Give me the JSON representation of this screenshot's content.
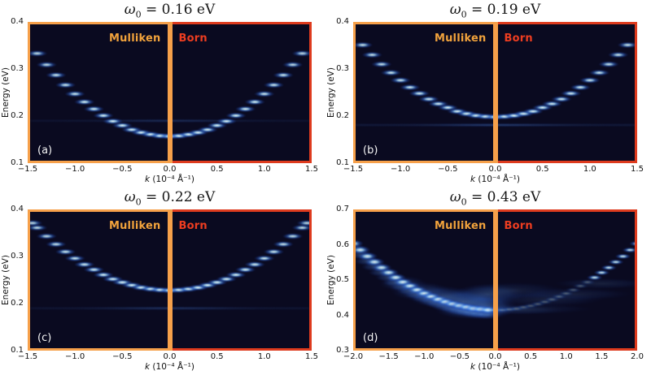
{
  "figure": {
    "background": "#ffffff",
    "colors": {
      "mulliken_orange": "#f6a04a",
      "born_red": "#de3b1e",
      "born_text_red": "#ee3d20",
      "plot_background": "#0a0a20",
      "spot_core": "#ffffff",
      "spot_mid": "#6fb9f2",
      "spot_halo": "#1c3a8c",
      "panel_letter": "#f5f5f5"
    }
  },
  "chart_data": [
    {
      "type": "heatmap",
      "panel_label": "(a)",
      "title": {
        "symbol": "ω",
        "sub": "0",
        "rest": " = 0.16 eV"
      },
      "omega0_eV": 0.16,
      "xlabel_k": "k",
      "xlabel_rest": " (10⁻⁴ Å⁻¹)",
      "ylabel": "Energy (eV)",
      "xlim": [
        -1.5,
        1.5
      ],
      "ylim": [
        0.1,
        0.4
      ],
      "xtick_labels": [
        "−1.5",
        "−1.0",
        "−0.5",
        "0.0",
        "0.5",
        "1.0",
        "1.5"
      ],
      "ytick_labels": [
        "0.1",
        "0.2",
        "0.3",
        "0.4"
      ],
      "regions": {
        "left": "Mulliken",
        "right": "Born"
      },
      "band_min_eV": 0.157,
      "phonon_sideband_eV": 0.19,
      "sideband_alpha": 0.2,
      "side_intensity": {
        "mulliken": 1.0,
        "born": 1.0
      },
      "diffuse": false,
      "spots": [
        [
          -1.4,
          0.333
        ],
        [
          -1.3,
          0.309
        ],
        [
          -1.2,
          0.287
        ],
        [
          -1.1,
          0.266
        ],
        [
          -1.0,
          0.247
        ],
        [
          -0.9,
          0.23
        ],
        [
          -0.8,
          0.215
        ],
        [
          -0.7,
          0.201
        ],
        [
          -0.6,
          0.189
        ],
        [
          -0.5,
          0.18
        ],
        [
          -0.4,
          0.171
        ],
        [
          -0.3,
          0.165
        ],
        [
          -0.2,
          0.161
        ],
        [
          -0.1,
          0.158
        ],
        [
          0.0,
          0.157
        ],
        [
          0.1,
          0.158
        ],
        [
          0.2,
          0.161
        ],
        [
          0.3,
          0.165
        ],
        [
          0.4,
          0.171
        ],
        [
          0.5,
          0.18
        ],
        [
          0.6,
          0.189
        ],
        [
          0.7,
          0.201
        ],
        [
          0.8,
          0.215
        ],
        [
          0.9,
          0.23
        ],
        [
          1.0,
          0.247
        ],
        [
          1.1,
          0.266
        ],
        [
          1.2,
          0.287
        ],
        [
          1.3,
          0.309
        ],
        [
          1.4,
          0.333
        ]
      ],
      "clouds": []
    },
    {
      "type": "heatmap",
      "panel_label": "(b)",
      "title": {
        "symbol": "ω",
        "sub": "0",
        "rest": " = 0.19 eV"
      },
      "omega0_eV": 0.19,
      "xlabel_k": "k",
      "xlabel_rest": " (10⁻⁴ Å⁻¹)",
      "ylabel": "Energy (eV)",
      "xlim": [
        -1.5,
        1.5
      ],
      "ylim": [
        0.1,
        0.4
      ],
      "xtick_labels": [
        "−1.5",
        "−1.0",
        "−0.5",
        "0.0",
        "0.5",
        "1.0",
        "1.5"
      ],
      "ytick_labels": [
        "0.1",
        "0.2",
        "0.3",
        "0.4"
      ],
      "regions": {
        "left": "Mulliken",
        "right": "Born"
      },
      "band_min_eV": 0.198,
      "phonon_sideband_eV": 0.181,
      "sideband_alpha": 0.3,
      "side_intensity": {
        "mulliken": 1.0,
        "born": 1.0
      },
      "diffuse": false,
      "spots": [
        [
          -1.4,
          0.351
        ],
        [
          -1.3,
          0.33
        ],
        [
          -1.2,
          0.31
        ],
        [
          -1.1,
          0.292
        ],
        [
          -1.0,
          0.276
        ],
        [
          -0.9,
          0.261
        ],
        [
          -0.8,
          0.248
        ],
        [
          -0.7,
          0.236
        ],
        [
          -0.6,
          0.226
        ],
        [
          -0.5,
          0.218
        ],
        [
          -0.4,
          0.21
        ],
        [
          -0.3,
          0.205
        ],
        [
          -0.2,
          0.201
        ],
        [
          -0.1,
          0.199
        ],
        [
          0.0,
          0.198
        ],
        [
          0.1,
          0.199
        ],
        [
          0.2,
          0.201
        ],
        [
          0.3,
          0.205
        ],
        [
          0.4,
          0.21
        ],
        [
          0.5,
          0.218
        ],
        [
          0.6,
          0.226
        ],
        [
          0.7,
          0.236
        ],
        [
          0.8,
          0.248
        ],
        [
          0.9,
          0.261
        ],
        [
          1.0,
          0.276
        ],
        [
          1.1,
          0.292
        ],
        [
          1.2,
          0.31
        ],
        [
          1.3,
          0.33
        ],
        [
          1.4,
          0.351
        ]
      ],
      "clouds": []
    },
    {
      "type": "heatmap",
      "panel_label": "(c)",
      "title": {
        "symbol": "ω",
        "sub": "0",
        "rest": " = 0.22 eV"
      },
      "omega0_eV": 0.22,
      "xlabel_k": "k",
      "xlabel_rest": " (10⁻⁴ Å⁻¹)",
      "ylabel": "Energy (eV)",
      "xlim": [
        -1.5,
        1.5
      ],
      "ylim": [
        0.1,
        0.4
      ],
      "xtick_labels": [
        "−1.5",
        "−1.0",
        "−0.5",
        "0.0",
        "0.5",
        "1.0",
        "1.5"
      ],
      "ytick_labels": [
        "0.1",
        "0.2",
        "0.3",
        "0.4"
      ],
      "regions": {
        "left": "Mulliken",
        "right": "Born"
      },
      "band_min_eV": 0.228,
      "phonon_sideband_eV": 0.19,
      "sideband_alpha": 0.22,
      "side_intensity": {
        "mulliken": 1.0,
        "born": 1.0
      },
      "diffuse": false,
      "spots": [
        [
          -1.45,
          0.371
        ],
        [
          -1.4,
          0.361
        ],
        [
          -1.3,
          0.343
        ],
        [
          -1.2,
          0.326
        ],
        [
          -1.1,
          0.31
        ],
        [
          -1.0,
          0.296
        ],
        [
          -0.9,
          0.283
        ],
        [
          -0.8,
          0.272
        ],
        [
          -0.7,
          0.261
        ],
        [
          -0.6,
          0.252
        ],
        [
          -0.5,
          0.245
        ],
        [
          -0.4,
          0.239
        ],
        [
          -0.3,
          0.234
        ],
        [
          -0.2,
          0.231
        ],
        [
          -0.1,
          0.229
        ],
        [
          0.0,
          0.228
        ],
        [
          0.1,
          0.229
        ],
        [
          0.2,
          0.231
        ],
        [
          0.3,
          0.234
        ],
        [
          0.4,
          0.239
        ],
        [
          0.5,
          0.245
        ],
        [
          0.6,
          0.252
        ],
        [
          0.7,
          0.261
        ],
        [
          0.8,
          0.272
        ],
        [
          0.9,
          0.283
        ],
        [
          1.0,
          0.296
        ],
        [
          1.1,
          0.31
        ],
        [
          1.2,
          0.326
        ],
        [
          1.3,
          0.343
        ],
        [
          1.4,
          0.361
        ],
        [
          1.45,
          0.371
        ]
      ],
      "clouds": []
    },
    {
      "type": "heatmap",
      "panel_label": "(d)",
      "title": {
        "symbol": "ω",
        "sub": "0",
        "rest": " = 0.43 eV"
      },
      "omega0_eV": 0.43,
      "xlabel_k": "k",
      "xlabel_rest": " (10⁻⁴ Å⁻¹)",
      "ylabel": "Energy (eV)",
      "xlim": [
        -2.0,
        2.0
      ],
      "ylim": [
        0.3,
        0.7
      ],
      "xtick_labels": [
        "−2.0",
        "−1.5",
        "−1.0",
        "−0.5",
        "0.0",
        "0.5",
        "1.0",
        "1.5",
        "2.0"
      ],
      "ytick_labels": [
        "0.3",
        "0.4",
        "0.5",
        "0.6",
        "0.7"
      ],
      "regions": {
        "left": "Mulliken",
        "right": "Born"
      },
      "band_min_eV": 0.415,
      "phonon_sideband_eV": null,
      "sideband_alpha": 0,
      "side_intensity": {
        "mulliken": 1.0,
        "born": 0.3
      },
      "diffuse": true,
      "spots": [
        [
          -2.0,
          0.603
        ],
        [
          -1.9,
          0.585
        ],
        [
          -1.8,
          0.567
        ],
        [
          -1.7,
          0.551
        ],
        [
          -1.6,
          0.535
        ],
        [
          -1.5,
          0.521
        ],
        [
          -1.4,
          0.507
        ],
        [
          -1.3,
          0.494
        ],
        [
          -1.2,
          0.483
        ],
        [
          -1.1,
          0.472
        ],
        [
          -1.0,
          0.462
        ],
        [
          -0.9,
          0.453
        ],
        [
          -0.8,
          0.445
        ],
        [
          -0.7,
          0.438
        ],
        [
          -0.6,
          0.432
        ],
        [
          -0.5,
          0.427
        ],
        [
          -0.4,
          0.423
        ],
        [
          -0.3,
          0.419
        ],
        [
          -0.2,
          0.417
        ],
        [
          -0.1,
          0.415
        ],
        [
          0.0,
          0.415
        ],
        [
          0.1,
          0.415
        ],
        [
          0.2,
          0.417
        ],
        [
          0.3,
          0.419
        ],
        [
          0.4,
          0.423
        ],
        [
          0.5,
          0.427
        ],
        [
          0.6,
          0.432
        ],
        [
          0.7,
          0.438
        ],
        [
          0.8,
          0.445
        ],
        [
          0.9,
          0.453
        ],
        [
          1.0,
          0.462
        ],
        [
          1.1,
          0.472
        ],
        [
          1.2,
          0.483
        ],
        [
          1.3,
          0.494
        ],
        [
          1.4,
          0.507
        ],
        [
          1.5,
          0.521
        ],
        [
          1.6,
          0.535
        ],
        [
          1.7,
          0.551
        ],
        [
          1.8,
          0.567
        ],
        [
          1.9,
          0.585
        ],
        [
          2.0,
          0.603
        ]
      ],
      "clouds": [
        [
          -0.15,
          0.425,
          80,
          34,
          0.5
        ],
        [
          -0.45,
          0.438,
          90,
          32,
          0.45
        ],
        [
          -0.75,
          0.452,
          85,
          28,
          0.38
        ],
        [
          -1.05,
          0.468,
          75,
          24,
          0.3
        ],
        [
          -1.3,
          0.49,
          60,
          20,
          0.26
        ],
        [
          -0.3,
          0.412,
          95,
          20,
          0.42
        ],
        [
          -0.1,
          0.46,
          90,
          26,
          0.3
        ],
        [
          0.25,
          0.47,
          130,
          22,
          0.16
        ],
        [
          0.7,
          0.445,
          150,
          18,
          0.15
        ],
        [
          1.1,
          0.46,
          150,
          16,
          0.15
        ],
        [
          1.5,
          0.49,
          120,
          14,
          0.16
        ],
        [
          0.5,
          0.418,
          160,
          14,
          0.12
        ],
        [
          0.3,
          0.415,
          120,
          12,
          0.15
        ]
      ]
    }
  ]
}
